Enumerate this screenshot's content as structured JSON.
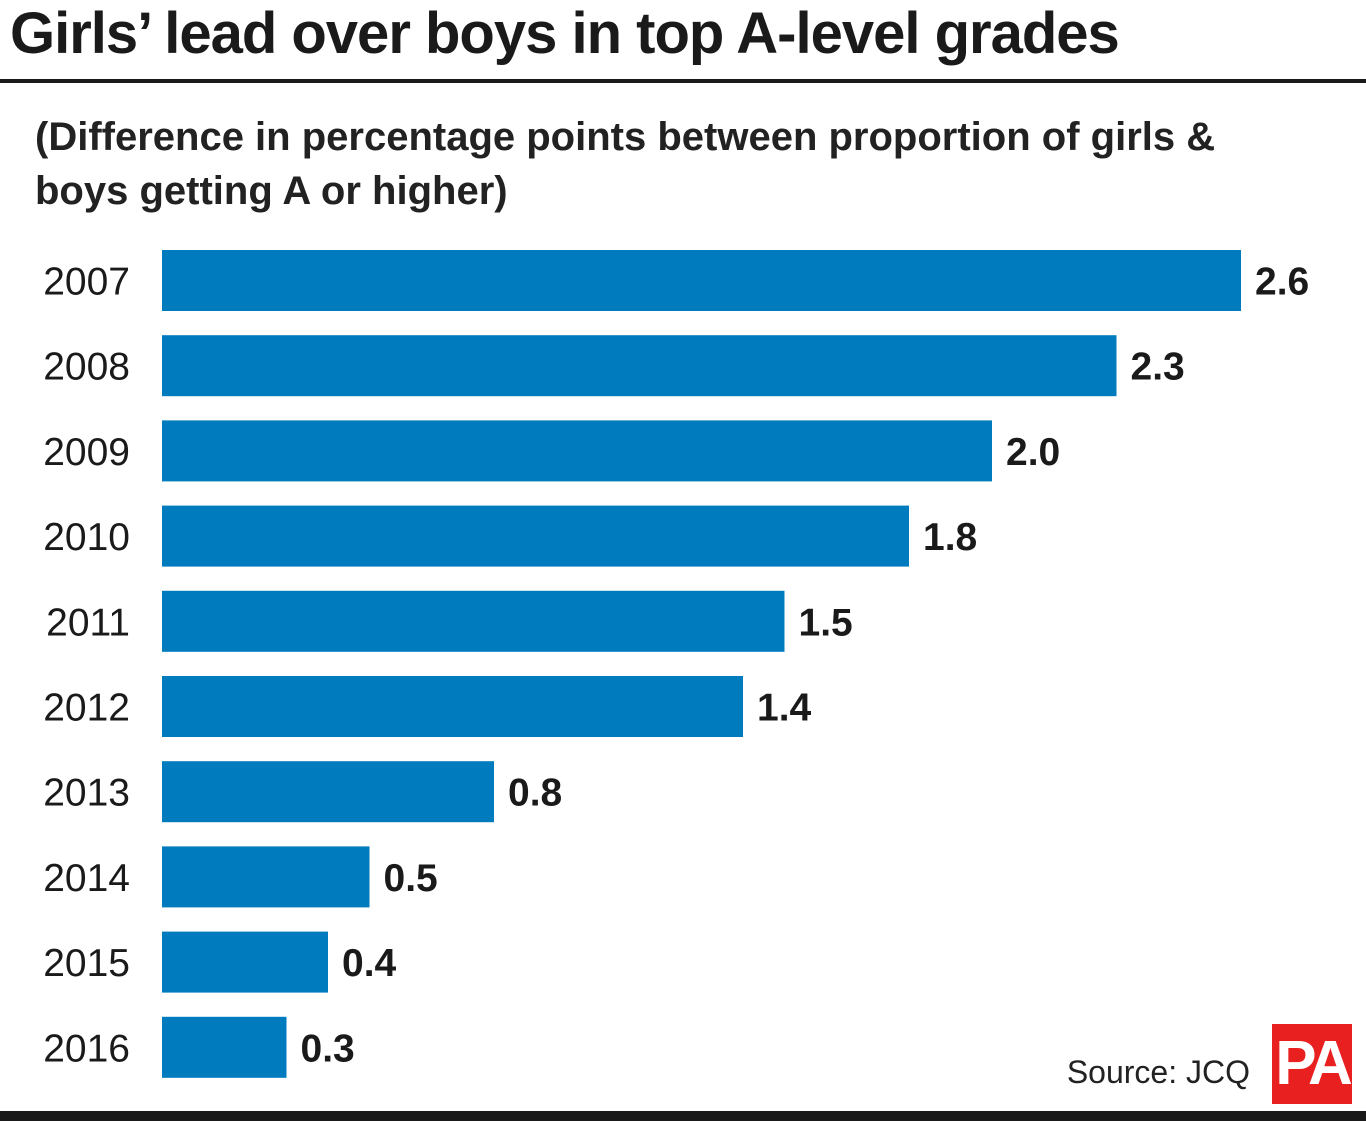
{
  "chart_data": {
    "type": "bar",
    "orientation": "horizontal",
    "title": "Girls’ lead over boys in top A-level grades",
    "subtitle": "(Difference in percentage points between proportion of girls & boys getting A or higher)",
    "categories": [
      "2007",
      "2008",
      "2009",
      "2010",
      "2011",
      "2012",
      "2013",
      "2014",
      "2015",
      "2016"
    ],
    "values": [
      2.6,
      2.3,
      2.0,
      1.8,
      1.5,
      1.4,
      0.8,
      0.5,
      0.4,
      0.3
    ],
    "value_labels": [
      "2.6",
      "2.3",
      "2.0",
      "1.8",
      "1.5",
      "1.4",
      "0.8",
      "0.5",
      "0.4",
      "0.3"
    ],
    "xlim": [
      0,
      2.6
    ],
    "grid": false,
    "bar_color": "#007bbd"
  },
  "source": "Source: JCQ",
  "logo_text": "PA",
  "colors": {
    "bar": "#007bbd",
    "text": "#1a1a1a",
    "logo_bg": "#e8201f"
  }
}
